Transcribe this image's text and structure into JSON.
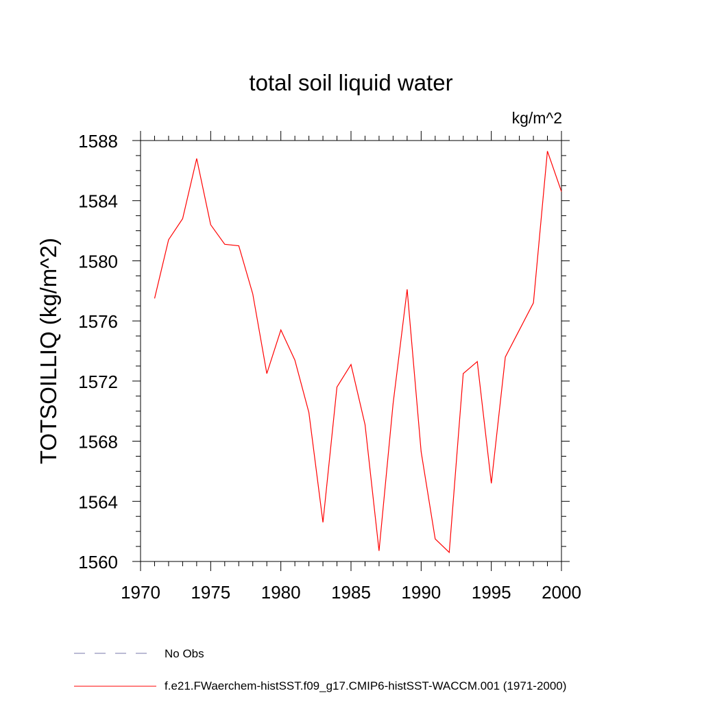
{
  "chart_data": {
    "type": "line",
    "title": "total soil liquid water",
    "units_label": "kg/m^2",
    "ylabel": "TOTSOILLIQ  (kg/m^2)",
    "xlabel": "",
    "xlim": [
      1970,
      2000
    ],
    "ylim": [
      1560,
      1588
    ],
    "x_ticks": [
      "1970",
      "1975",
      "1980",
      "1985",
      "1990",
      "1995",
      "2000"
    ],
    "y_ticks": [
      "1560",
      "1564",
      "1568",
      "1572",
      "1576",
      "1580",
      "1584",
      "1588"
    ],
    "grid": false,
    "legend_position": "bottom",
    "legend": [
      {
        "label": "No Obs",
        "style": "dashed",
        "color": "#7777aa"
      },
      {
        "label": "f.e21.FWaerchem-histSST.f09_g17.CMIP6-histSST-WACCM.001 (1971-2000)",
        "style": "solid",
        "color": "#ff0000"
      }
    ],
    "series": [
      {
        "color": "#ff0000",
        "x": [
          1971,
          1972,
          1973,
          1974,
          1975,
          1976,
          1977,
          1978,
          1979,
          1980,
          1981,
          1982,
          1983,
          1984,
          1985,
          1986,
          1987,
          1988,
          1989,
          1990,
          1991,
          1992,
          1993,
          1994,
          1995,
          1996,
          1997,
          1998,
          1999,
          2000
        ],
        "values": [
          1577.5,
          1581.4,
          1582.8,
          1586.8,
          1582.4,
          1581.1,
          1581.0,
          1577.8,
          1572.5,
          1575.4,
          1573.4,
          1569.9,
          1562.6,
          1571.6,
          1573.1,
          1569.1,
          1560.7,
          1570.5,
          1578.1,
          1567.3,
          1561.5,
          1560.6,
          1572.5,
          1573.3,
          1565.2,
          1573.6,
          1575.4,
          1577.2,
          1587.3,
          1584.6
        ]
      }
    ]
  }
}
